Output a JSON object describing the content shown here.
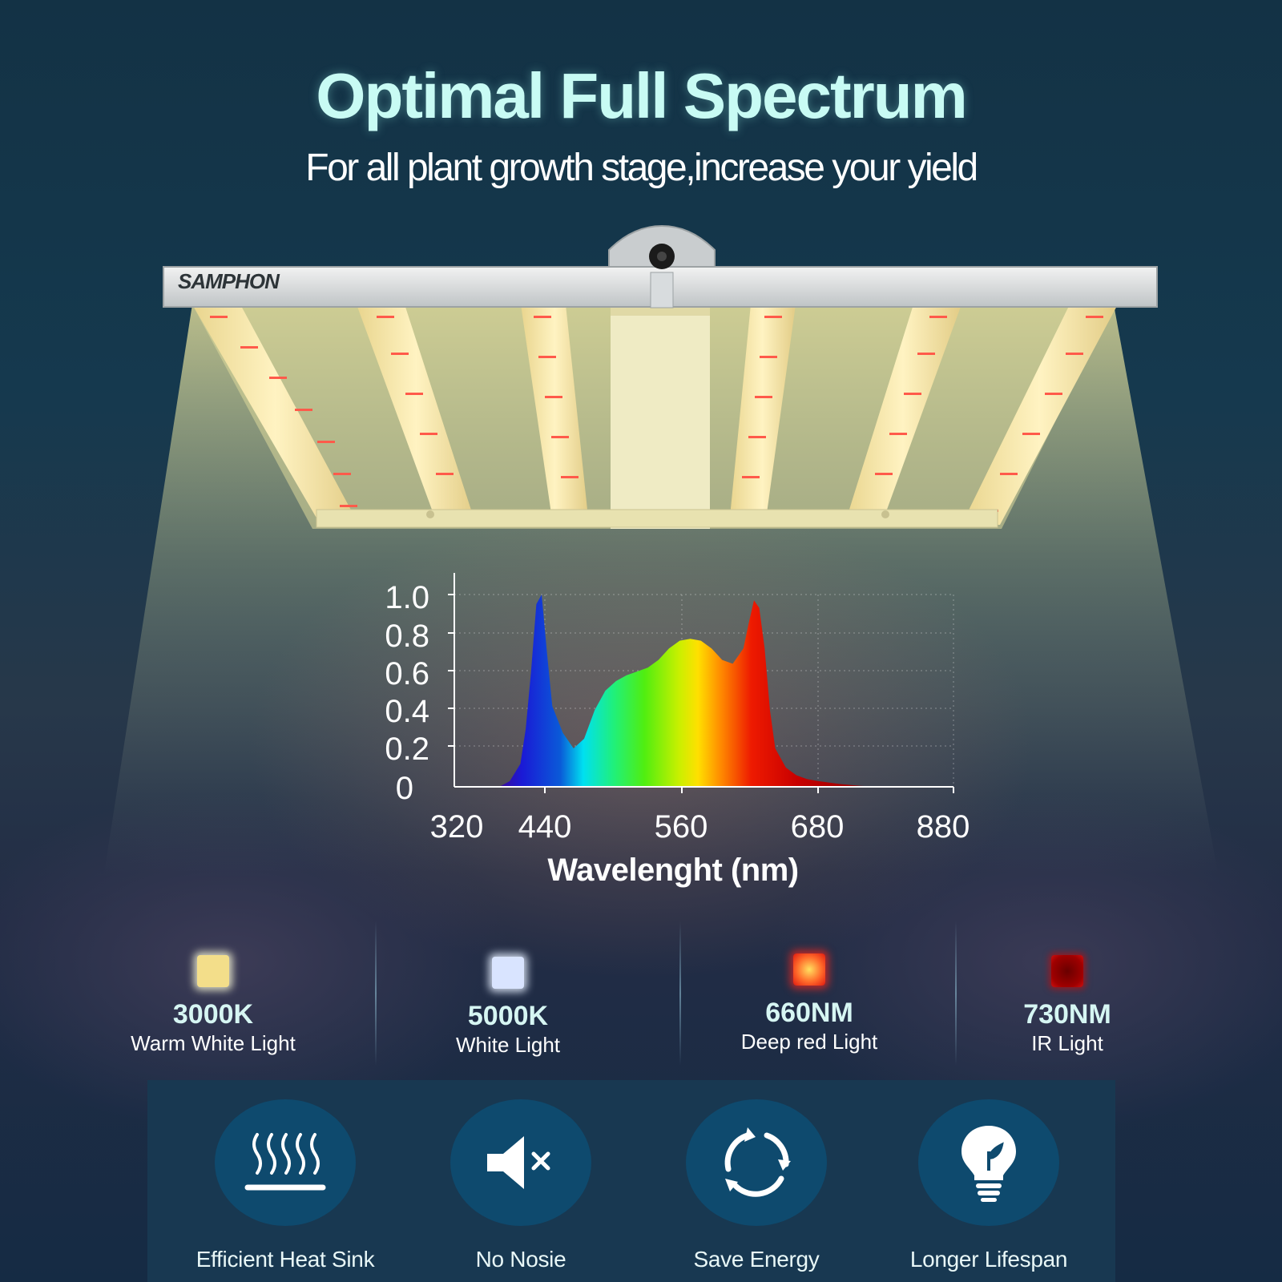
{
  "header": {
    "title": "Optimal Full Spectrum",
    "subtitle": "For all plant growth stage,increase your yield"
  },
  "product": {
    "brand": "SAMPHON"
  },
  "chart_data": {
    "type": "area",
    "xlabel": "Wavelenght (nm)",
    "ylabel": "",
    "x_ticks": [
      "320",
      "440",
      "560",
      "680",
      "880"
    ],
    "y_ticks": [
      "1.0",
      "0.8",
      "0.6",
      "0.4",
      "0.2",
      "0"
    ],
    "xlim": [
      360,
      800
    ],
    "ylim": [
      0,
      1.0
    ],
    "grid": true,
    "series": [
      {
        "x": [
          400,
          410,
          420,
          425,
          430,
          435,
          440,
          445,
          450,
          460,
          470,
          480,
          490,
          500,
          510,
          520,
          530,
          540,
          550,
          560,
          570,
          580,
          590,
          600,
          610,
          620,
          630,
          635,
          640,
          645,
          650,
          655,
          660,
          670,
          680,
          690,
          700,
          720,
          740,
          760
        ],
        "y": [
          0.0,
          0.03,
          0.12,
          0.3,
          0.6,
          0.95,
          1.0,
          0.7,
          0.42,
          0.28,
          0.2,
          0.25,
          0.4,
          0.5,
          0.55,
          0.58,
          0.6,
          0.62,
          0.66,
          0.72,
          0.76,
          0.77,
          0.76,
          0.72,
          0.66,
          0.64,
          0.72,
          0.85,
          0.97,
          0.93,
          0.72,
          0.4,
          0.2,
          0.1,
          0.06,
          0.04,
          0.03,
          0.015,
          0.005,
          0.0
        ]
      }
    ]
  },
  "leds": [
    {
      "title": "3000K",
      "subtitle": "Warm White Light",
      "color": "#f3de8a"
    },
    {
      "title": "5000K",
      "subtitle": "White Light",
      "color": "#d9e4ff"
    },
    {
      "title": "660NM",
      "subtitle": "Deep red Light",
      "color": "#ff4a2a"
    },
    {
      "title": "730NM",
      "subtitle": "IR Light",
      "color": "#a80000"
    }
  ],
  "features": [
    {
      "label": "Efficient Heat Sink",
      "icon": "heat-sink-icon"
    },
    {
      "label": "No Nosie",
      "icon": "mute-icon"
    },
    {
      "label": "Save Energy",
      "icon": "energy-cycle-icon"
    },
    {
      "label": "Longer Lifespan",
      "icon": "bulb-icon"
    }
  ],
  "colors": {
    "title": "#c8fbf4",
    "feature_circle": "#0e4a6e",
    "panel": "#183851"
  }
}
